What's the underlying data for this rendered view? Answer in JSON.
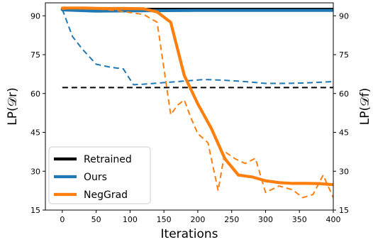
{
  "chart_data": {
    "type": "line",
    "xlabel": "Iterations",
    "ylabel_left": "LP(𝒟r)",
    "ylabel_right": "LP(𝒟f)",
    "xlim": [
      -25,
      400
    ],
    "ylim": [
      15,
      95
    ],
    "x_ticks": [
      0,
      50,
      100,
      150,
      200,
      250,
      300,
      350,
      400
    ],
    "y_ticks_left": [
      15,
      30,
      45,
      60,
      75,
      90
    ],
    "y_ticks_right": [
      15,
      30,
      45,
      60,
      75,
      90
    ],
    "grid": false,
    "legend_position": "lower-left",
    "colors": {
      "Retrained": "#000000",
      "Ours": "#1f77b4",
      "NegGrad": "#ff7f0e"
    },
    "legend": [
      "Retrained",
      "Ours",
      "NegGrad"
    ],
    "series": [
      {
        "name": "Retrained",
        "axis": "Dr",
        "style": "solid",
        "color": "#000000",
        "x": [
          0,
          400
        ],
        "y": [
          92.5,
          92.5
        ]
      },
      {
        "name": "Retrained",
        "axis": "Df",
        "style": "dashed",
        "color": "#000000",
        "x": [
          0,
          400
        ],
        "y": [
          62.3,
          62.3
        ]
      },
      {
        "name": "Ours",
        "axis": "Dr",
        "style": "solid",
        "color": "#1f77b4",
        "x": [
          0,
          50,
          100,
          150,
          200,
          250,
          300,
          350,
          400
        ],
        "y": [
          92.3,
          91.8,
          91.9,
          92.0,
          92.1,
          92.1,
          92.1,
          92.1,
          92.1
        ]
      },
      {
        "name": "Ours",
        "axis": "Df",
        "style": "dashed",
        "color": "#1f77b4",
        "x": [
          0,
          15,
          30,
          50,
          70,
          90,
          105,
          120,
          150,
          180,
          210,
          240,
          270,
          300,
          330,
          360,
          400
        ],
        "y": [
          92.5,
          82,
          77,
          71.3,
          70.2,
          69.5,
          63.4,
          63.6,
          64.2,
          64.8,
          65.4,
          65.1,
          64.6,
          63.9,
          63.9,
          64.1,
          64.6
        ]
      },
      {
        "name": "NegGrad",
        "axis": "Dr",
        "style": "solid",
        "color": "#ff7f0e",
        "x": [
          0,
          30,
          60,
          90,
          120,
          140,
          160,
          180,
          200,
          220,
          240,
          260,
          280,
          300,
          320,
          340,
          360,
          380,
          400
        ],
        "y": [
          93.0,
          93.0,
          92.8,
          92.8,
          92.7,
          91.5,
          87.5,
          67.0,
          56.0,
          46.5,
          34.8,
          28.5,
          27.8,
          26.3,
          25.6,
          25.3,
          25.3,
          25.2,
          24.8
        ]
      },
      {
        "name": "NegGrad",
        "axis": "Df",
        "style": "dashed",
        "color": "#ff7f0e",
        "x": [
          0,
          20,
          40,
          60,
          80,
          100,
          120,
          140,
          160,
          170,
          180,
          190,
          200,
          215,
          230,
          240,
          255,
          270,
          285,
          300,
          320,
          340,
          355,
          370,
          385,
          400
        ],
        "y": [
          92.5,
          93.1,
          93.0,
          92.5,
          92.0,
          91.3,
          90.5,
          87.5,
          51.8,
          55.5,
          57.5,
          50.5,
          44.5,
          41.0,
          22.5,
          37.5,
          34.8,
          33.0,
          35.0,
          21.8,
          24.3,
          22.8,
          19.8,
          21.0,
          28.5,
          19.8
        ]
      }
    ]
  }
}
